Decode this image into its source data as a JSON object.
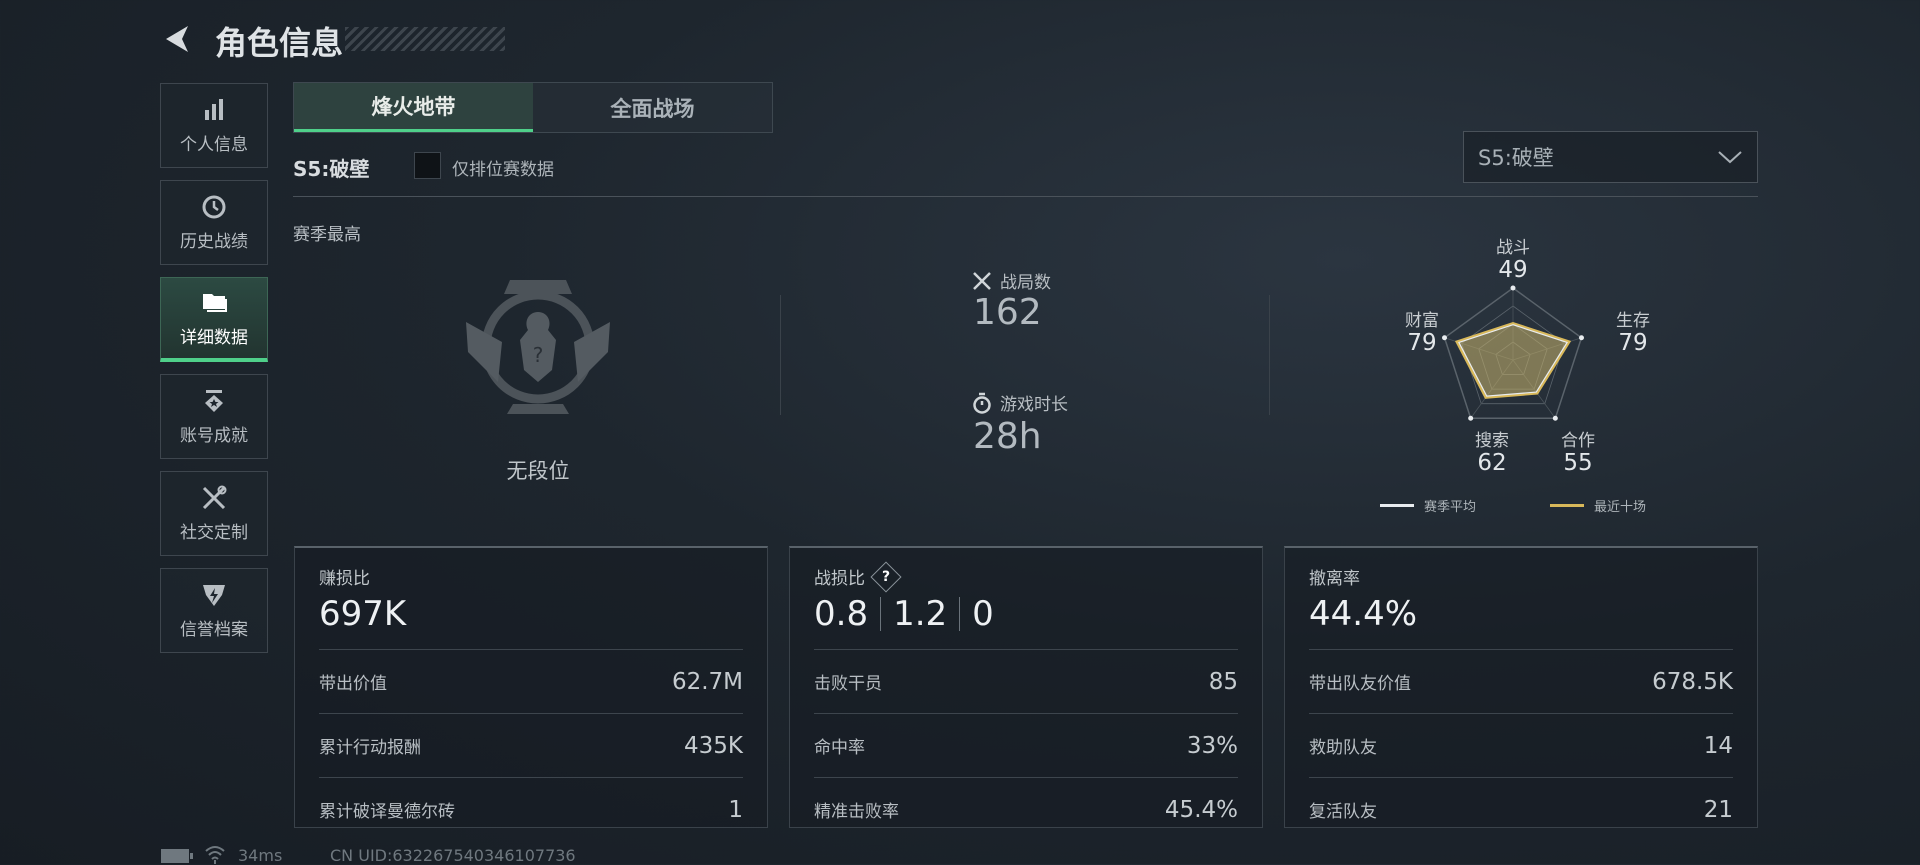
{
  "header": {
    "title": "角色信息",
    "back_icon": "back-arrow-icon"
  },
  "sidebar": {
    "items": [
      {
        "label": "个人信息",
        "icon": "bar-chart-icon",
        "active": false
      },
      {
        "label": "历史战绩",
        "icon": "history-clock-icon",
        "active": false
      },
      {
        "label": "详细数据",
        "icon": "folder-icon",
        "active": true
      },
      {
        "label": "账号成就",
        "icon": "medal-icon",
        "active": false
      },
      {
        "label": "社交定制",
        "icon": "tools-icon",
        "active": false
      },
      {
        "label": "信誉档案",
        "icon": "shield-bolt-icon",
        "active": false
      }
    ]
  },
  "tabs": [
    {
      "label": "烽火地带",
      "active": true
    },
    {
      "label": "全面战场",
      "active": false
    }
  ],
  "season": {
    "label": "S5:破壁",
    "ranked_only_label": "仅排位赛数据",
    "ranked_only_checked": false,
    "dropdown_value": "S5:破壁"
  },
  "rank": {
    "section_label": "赛季最高",
    "rank_name": "无段位"
  },
  "summary": {
    "matches_label": "战局数",
    "matches_value": "162",
    "playtime_label": "游戏时长",
    "playtime_value": "28h"
  },
  "chart_data": {
    "type": "radar",
    "axes": [
      "战斗",
      "生存",
      "合作",
      "搜索",
      "财富"
    ],
    "values": [
      49,
      79,
      55,
      62,
      79
    ],
    "range": [
      0,
      100
    ],
    "series": [
      {
        "name": "赛季平均",
        "color": "#e8ecef"
      },
      {
        "name": "最近十场",
        "color": "#d8b85a"
      }
    ]
  },
  "cards": [
    {
      "title": "赚损比",
      "big": [
        "697K"
      ],
      "help": false,
      "rows": [
        {
          "label": "带出价值",
          "value": "62.7M"
        },
        {
          "label": "累计行动报酬",
          "value": "435K"
        },
        {
          "label": "累计破译曼德尔砖",
          "value": "1"
        }
      ]
    },
    {
      "title": "战损比",
      "big": [
        "0.8",
        "1.2",
        "0"
      ],
      "help": true,
      "rows": [
        {
          "label": "击败干员",
          "value": "85"
        },
        {
          "label": "命中率",
          "value": "33%"
        },
        {
          "label": "精准击败率",
          "value": "45.4%"
        }
      ]
    },
    {
      "title": "撤离率",
      "big": [
        "44.4%"
      ],
      "help": false,
      "rows": [
        {
          "label": "带出队友价值",
          "value": "678.5K"
        },
        {
          "label": "救助队友",
          "value": "14"
        },
        {
          "label": "复活队友",
          "value": "21"
        }
      ]
    }
  ],
  "footer": {
    "ping": "34ms",
    "uid": "CN UID:632267540346107736"
  }
}
